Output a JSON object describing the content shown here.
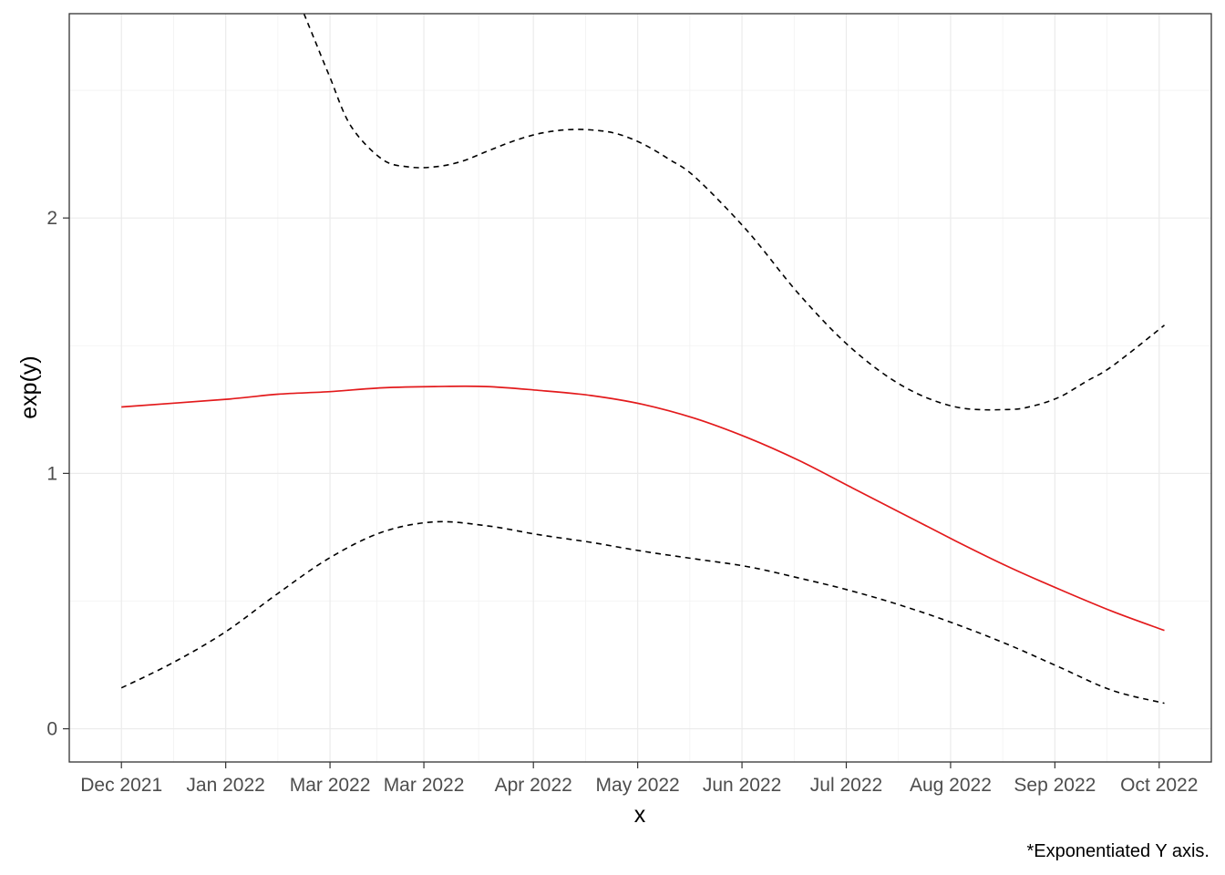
{
  "chart_data": {
    "type": "line",
    "title": "",
    "xlabel": "x",
    "ylabel": "exp(y)",
    "caption": "*Exponentiated Y axis.",
    "x_tick_labels": [
      "Dec 2021",
      "Jan 2022",
      "Mar 2022",
      "Mar 2022",
      "Apr 2022",
      "May 2022",
      "Jun 2022",
      "Jul 2022",
      "Aug 2022",
      "Sep 2022",
      "Oct 2022"
    ],
    "x_tick_positions": [
      0,
      1,
      2,
      2.9,
      3.95,
      4.95,
      5.95,
      6.95,
      7.95,
      8.95,
      9.95
    ],
    "y_ticks": [
      0,
      1,
      2
    ],
    "y_tick_labels": [
      "0",
      "1",
      "2"
    ],
    "xlim": [
      -0.5,
      10.45
    ],
    "ylim": [
      -0.13,
      2.8
    ],
    "grid": true,
    "series": [
      {
        "role": "estimate",
        "color": "#e31a1c",
        "dash": "solid",
        "x": [
          0,
          1,
          1.5,
          2,
          2.5,
          3,
          3.5,
          4,
          4.5,
          5,
          5.5,
          6,
          6.5,
          7,
          7.5,
          8,
          8.5,
          9,
          9.5,
          10
        ],
        "y": [
          1.26,
          1.29,
          1.31,
          1.32,
          1.335,
          1.34,
          1.34,
          1.325,
          1.305,
          1.27,
          1.215,
          1.14,
          1.05,
          0.945,
          0.84,
          0.735,
          0.635,
          0.545,
          0.46,
          0.385
        ]
      },
      {
        "role": "lower-bound",
        "color": "#000000",
        "dash": "dashed",
        "x": [
          0,
          0.5,
          1,
          1.5,
          2,
          2.5,
          3,
          3.5,
          4,
          4.5,
          5,
          5.5,
          6,
          6.5,
          7,
          7.5,
          8,
          8.5,
          9,
          9.5,
          10
        ],
        "y": [
          0.16,
          0.26,
          0.38,
          0.53,
          0.67,
          0.77,
          0.81,
          0.795,
          0.76,
          0.73,
          0.695,
          0.665,
          0.635,
          0.59,
          0.54,
          0.48,
          0.41,
          0.33,
          0.24,
          0.15,
          0.1
        ]
      },
      {
        "role": "upper-bound",
        "color": "#000000",
        "dash": "dashed",
        "x": [
          1.75,
          1.85,
          2,
          2.2,
          2.5,
          2.75,
          3,
          3.25,
          3.5,
          3.75,
          4,
          4.25,
          4.5,
          4.75,
          5,
          5.25,
          5.5,
          6,
          6.5,
          7,
          7.5,
          8,
          8.5,
          8.75,
          9,
          9.25,
          9.5,
          10
        ],
        "y": [
          2.8,
          2.7,
          2.55,
          2.36,
          2.23,
          2.2,
          2.2,
          2.22,
          2.26,
          2.3,
          2.33,
          2.345,
          2.345,
          2.33,
          2.29,
          2.23,
          2.16,
          1.95,
          1.7,
          1.49,
          1.34,
          1.26,
          1.25,
          1.265,
          1.3,
          1.36,
          1.42,
          1.58
        ]
      }
    ]
  }
}
